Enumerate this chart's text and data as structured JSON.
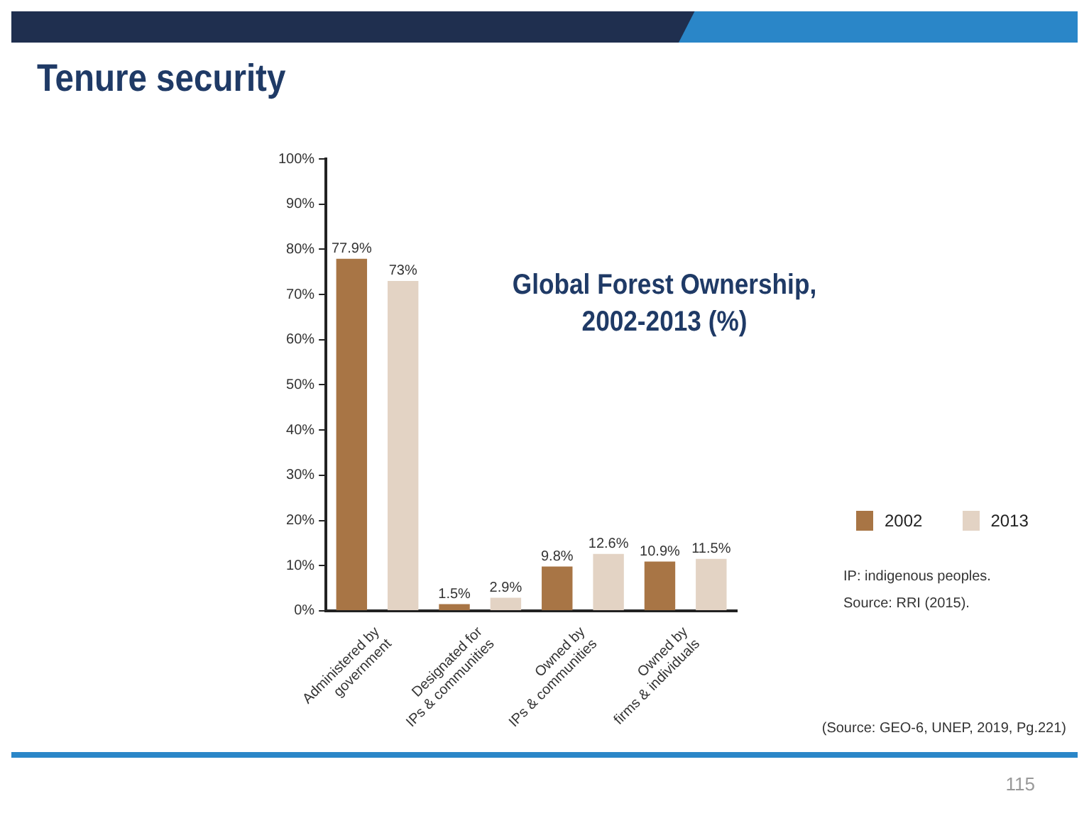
{
  "chart_data": {
    "type": "bar",
    "title": "Tenure security",
    "subtitle": "Global Forest Ownership, 2002-2013 (%)",
    "categories": [
      "Administered by government",
      "Designated for IPs & communities",
      "Owned by IPs & communities",
      "Owned by firms & individuals"
    ],
    "series": [
      {
        "name": "2002",
        "color": "#a87545",
        "values": [
          77.9,
          1.5,
          9.8,
          10.9
        ],
        "value_labels": [
          "77.9%",
          "1.5%",
          "9.8%",
          "10.9%"
        ]
      },
      {
        "name": "2013",
        "color": "#e3d3c4",
        "values": [
          73,
          2.9,
          12.6,
          11.5
        ],
        "value_labels": [
          "73%",
          "2.9%",
          "12.6%",
          "11.5%"
        ]
      }
    ],
    "ylim": [
      0,
      100
    ],
    "yticks": [
      {
        "value": 0,
        "label": "0%"
      },
      {
        "value": 10,
        "label": "10%"
      },
      {
        "value": 20,
        "label": "20%"
      },
      {
        "value": 30,
        "label": "30%"
      },
      {
        "value": 40,
        "label": "40%"
      },
      {
        "value": 50,
        "label": "50%"
      },
      {
        "value": 60,
        "label": "60%"
      },
      {
        "value": 70,
        "label": "70%"
      },
      {
        "value": 80,
        "label": "80%"
      },
      {
        "value": 90,
        "label": "90%"
      },
      {
        "value": 100,
        "label": "100%"
      }
    ],
    "grid": false,
    "legend": "right",
    "annotations": [
      "IP: indigenous peoples.",
      "Source: RRI (2015).",
      "(Source: GEO-6, UNEP, 2019, Pg.221)",
      "115"
    ]
  }
}
